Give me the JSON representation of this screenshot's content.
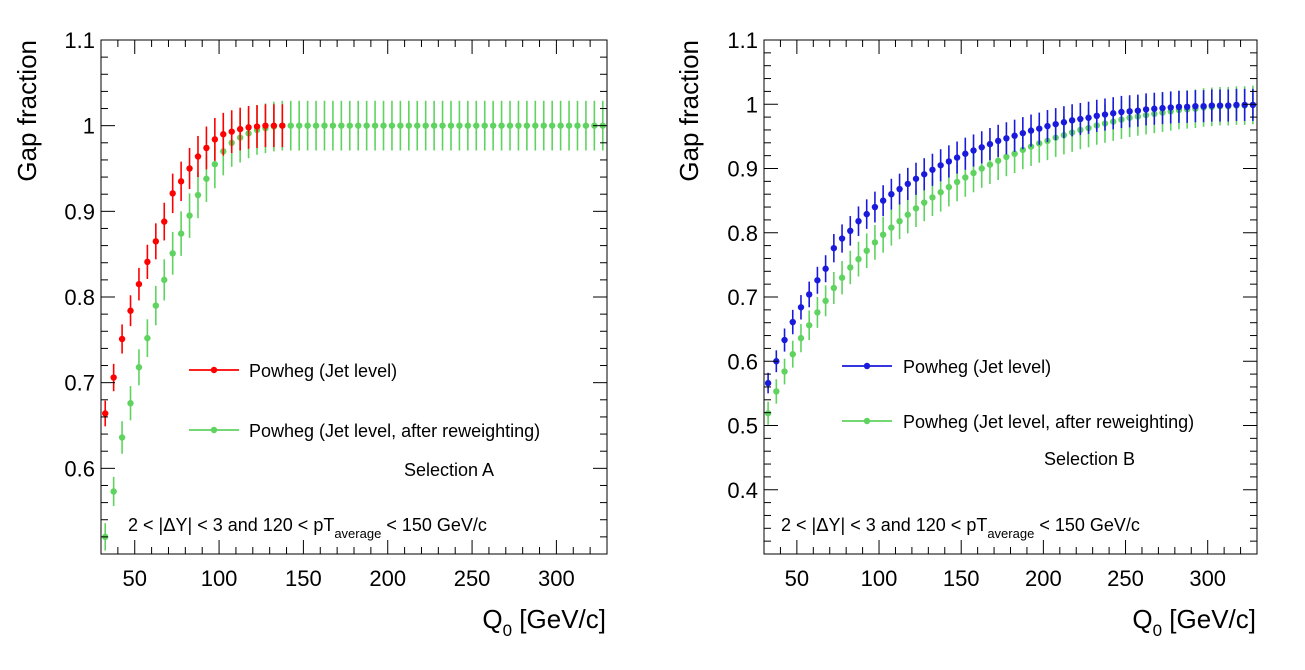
{
  "chart_data": [
    {
      "type": "scatter",
      "xlabel": "Q",
      "xlabel_sub": "0",
      "xlabel_unit": " [GeV/c]",
      "ylabel": "Gap fraction",
      "xlim": [
        30,
        330
      ],
      "ylim": [
        0.5,
        1.1
      ],
      "xticks": [
        50,
        100,
        150,
        200,
        250,
        300
      ],
      "yticks": [
        0.6,
        0.7,
        0.8,
        0.9,
        1,
        1.1
      ],
      "grid": false,
      "legend_position": "center-right",
      "selection_label": "Selection A",
      "cut_label": {
        "pre": "2 < |",
        "delta": "Δ",
        "mid": "Y| < 3 and 120 < pT",
        "sub": "average",
        "post": " < 150 GeV/c"
      },
      "x": [
        32.5,
        37.5,
        42.5,
        47.5,
        52.5,
        57.5,
        62.5,
        67.5,
        72.5,
        77.5,
        82.5,
        87.5,
        92.5,
        97.5,
        102.5,
        107.5,
        112.5,
        117.5,
        122.5,
        127.5,
        132.5,
        137.5,
        142.5,
        147.5,
        152.5,
        157.5,
        162.5,
        167.5,
        172.5,
        177.5,
        182.5,
        187.5,
        192.5,
        197.5,
        202.5,
        207.5,
        212.5,
        217.5,
        222.5,
        227.5,
        232.5,
        237.5,
        242.5,
        247.5,
        252.5,
        257.5,
        262.5,
        267.5,
        272.5,
        277.5,
        282.5,
        287.5,
        292.5,
        297.5,
        302.5,
        307.5,
        312.5,
        317.5,
        322.5,
        327.5
      ],
      "series": [
        {
          "name": "Powheg (Jet level)",
          "color": "#ff0000",
          "x_max": 140,
          "values": [
            0.664,
            0.706,
            0.751,
            0.784,
            0.815,
            0.841,
            0.865,
            0.888,
            0.921,
            0.935,
            0.95,
            0.964,
            0.974,
            0.984,
            0.99,
            0.993,
            0.996,
            0.998,
            0.999,
            1.0,
            1.0,
            1.0
          ],
          "errors": [
            0.015,
            0.016,
            0.017,
            0.018,
            0.019,
            0.02,
            0.021,
            0.022,
            0.023,
            0.023,
            0.024,
            0.024,
            0.025,
            0.025,
            0.025,
            0.025,
            0.025,
            0.025,
            0.025,
            0.025,
            0.025,
            0.025
          ]
        },
        {
          "name": "Powheg (Jet level, after reweighting)",
          "color": "#5fd35f",
          "values": [
            0.52,
            0.573,
            0.636,
            0.676,
            0.718,
            0.752,
            0.79,
            0.82,
            0.851,
            0.874,
            0.895,
            0.919,
            0.938,
            0.955,
            0.97,
            0.98,
            0.986,
            0.991,
            0.995,
            0.997,
            0.999,
            1.0,
            1.0,
            1.0,
            1.0,
            1.0,
            1.0,
            1.0,
            1.0,
            1.0,
            1.0,
            1.0,
            1.0,
            1.0,
            1.0,
            1.0,
            1.0,
            1.0,
            1.0,
            1.0,
            1.0,
            1.0,
            1.0,
            1.0,
            1.0,
            1.0,
            1.0,
            1.0,
            1.0,
            1.0,
            1.0,
            1.0,
            1.0,
            1.0,
            1.0,
            1.0,
            1.0,
            1.0,
            1.0,
            1.0
          ],
          "errors": [
            0.016,
            0.017,
            0.019,
            0.02,
            0.021,
            0.022,
            0.023,
            0.024,
            0.025,
            0.026,
            0.026,
            0.027,
            0.027,
            0.028,
            0.028,
            0.028,
            0.029,
            0.029,
            0.029,
            0.029,
            0.029,
            0.029,
            0.029,
            0.029,
            0.029,
            0.029,
            0.029,
            0.029,
            0.029,
            0.029,
            0.029,
            0.029,
            0.029,
            0.029,
            0.029,
            0.029,
            0.029,
            0.029,
            0.029,
            0.029,
            0.029,
            0.029,
            0.029,
            0.029,
            0.029,
            0.029,
            0.029,
            0.029,
            0.029,
            0.029,
            0.029,
            0.029,
            0.029,
            0.029,
            0.029,
            0.029,
            0.029,
            0.029,
            0.029,
            0.029
          ]
        }
      ]
    },
    {
      "type": "scatter",
      "xlabel": "Q",
      "xlabel_sub": "0",
      "xlabel_unit": " [GeV/c]",
      "ylabel": "Gap fraction",
      "xlim": [
        30,
        330
      ],
      "ylim": [
        0.3,
        1.1
      ],
      "xticks": [
        50,
        100,
        150,
        200,
        250,
        300
      ],
      "yticks": [
        0.4,
        0.5,
        0.6,
        0.7,
        0.8,
        0.9,
        1,
        1.1
      ],
      "grid": false,
      "legend_position": "center-right",
      "selection_label": "Selection B",
      "cut_label": {
        "pre": "2 < |",
        "delta": "Δ",
        "mid": "Y| < 3 and 120 < pT",
        "sub": "average",
        "post": " < 150 GeV/c"
      },
      "x": [
        32.5,
        37.5,
        42.5,
        47.5,
        52.5,
        57.5,
        62.5,
        67.5,
        72.5,
        77.5,
        82.5,
        87.5,
        92.5,
        97.5,
        102.5,
        107.5,
        112.5,
        117.5,
        122.5,
        127.5,
        132.5,
        137.5,
        142.5,
        147.5,
        152.5,
        157.5,
        162.5,
        167.5,
        172.5,
        177.5,
        182.5,
        187.5,
        192.5,
        197.5,
        202.5,
        207.5,
        212.5,
        217.5,
        222.5,
        227.5,
        232.5,
        237.5,
        242.5,
        247.5,
        252.5,
        257.5,
        262.5,
        267.5,
        272.5,
        277.5,
        282.5,
        287.5,
        292.5,
        297.5,
        302.5,
        307.5,
        312.5,
        317.5,
        322.5,
        327.5
      ],
      "series": [
        {
          "name": "Powheg (Jet level)",
          "color": "#1a1adc",
          "values": [
            0.566,
            0.6,
            0.633,
            0.661,
            0.684,
            0.704,
            0.726,
            0.744,
            0.776,
            0.791,
            0.803,
            0.818,
            0.829,
            0.84,
            0.85,
            0.86,
            0.868,
            0.876,
            0.884,
            0.891,
            0.898,
            0.905,
            0.911,
            0.917,
            0.923,
            0.928,
            0.933,
            0.938,
            0.943,
            0.947,
            0.951,
            0.955,
            0.959,
            0.962,
            0.966,
            0.969,
            0.972,
            0.975,
            0.977,
            0.979,
            0.982,
            0.984,
            0.986,
            0.988,
            0.989,
            0.99,
            0.992,
            0.993,
            0.994,
            0.995,
            0.996,
            0.996,
            0.997,
            0.997,
            0.998,
            0.998,
            0.998,
            0.999,
            0.999,
            0.999
          ],
          "errors": [
            0.016,
            0.017,
            0.018,
            0.019,
            0.019,
            0.02,
            0.021,
            0.021,
            0.022,
            0.022,
            0.023,
            0.023,
            0.023,
            0.024,
            0.024,
            0.024,
            0.024,
            0.025,
            0.025,
            0.025,
            0.025,
            0.025,
            0.025,
            0.025,
            0.025,
            0.025,
            0.025,
            0.025,
            0.025,
            0.025,
            0.025,
            0.025,
            0.025,
            0.025,
            0.025,
            0.025,
            0.025,
            0.025,
            0.025,
            0.025,
            0.025,
            0.025,
            0.025,
            0.025,
            0.025,
            0.025,
            0.025,
            0.025,
            0.025,
            0.025,
            0.025,
            0.025,
            0.025,
            0.025,
            0.025,
            0.025,
            0.025,
            0.025,
            0.025,
            0.025
          ]
        },
        {
          "name": "Powheg (Jet level, after reweighting)",
          "color": "#5fd35f",
          "values": [
            0.519,
            0.553,
            0.584,
            0.611,
            0.636,
            0.656,
            0.676,
            0.694,
            0.714,
            0.73,
            0.746,
            0.759,
            0.772,
            0.785,
            0.797,
            0.808,
            0.818,
            0.828,
            0.838,
            0.847,
            0.855,
            0.863,
            0.871,
            0.879,
            0.886,
            0.893,
            0.9,
            0.906,
            0.912,
            0.918,
            0.923,
            0.929,
            0.934,
            0.939,
            0.943,
            0.948,
            0.952,
            0.956,
            0.96,
            0.963,
            0.967,
            0.97,
            0.973,
            0.976,
            0.979,
            0.981,
            0.983,
            0.985,
            0.987,
            0.989,
            0.991,
            0.992,
            0.993,
            0.995,
            0.996,
            0.997,
            0.997,
            0.998,
            0.998,
            0.999
          ],
          "errors": [
            0.018,
            0.019,
            0.02,
            0.021,
            0.022,
            0.023,
            0.024,
            0.024,
            0.025,
            0.026,
            0.026,
            0.027,
            0.027,
            0.027,
            0.028,
            0.028,
            0.028,
            0.029,
            0.029,
            0.029,
            0.029,
            0.03,
            0.03,
            0.03,
            0.03,
            0.03,
            0.03,
            0.03,
            0.03,
            0.03,
            0.03,
            0.03,
            0.03,
            0.03,
            0.03,
            0.03,
            0.03,
            0.03,
            0.03,
            0.03,
            0.03,
            0.03,
            0.03,
            0.03,
            0.03,
            0.03,
            0.03,
            0.03,
            0.03,
            0.03,
            0.03,
            0.03,
            0.03,
            0.03,
            0.03,
            0.03,
            0.03,
            0.03,
            0.03,
            0.03
          ]
        }
      ]
    }
  ]
}
